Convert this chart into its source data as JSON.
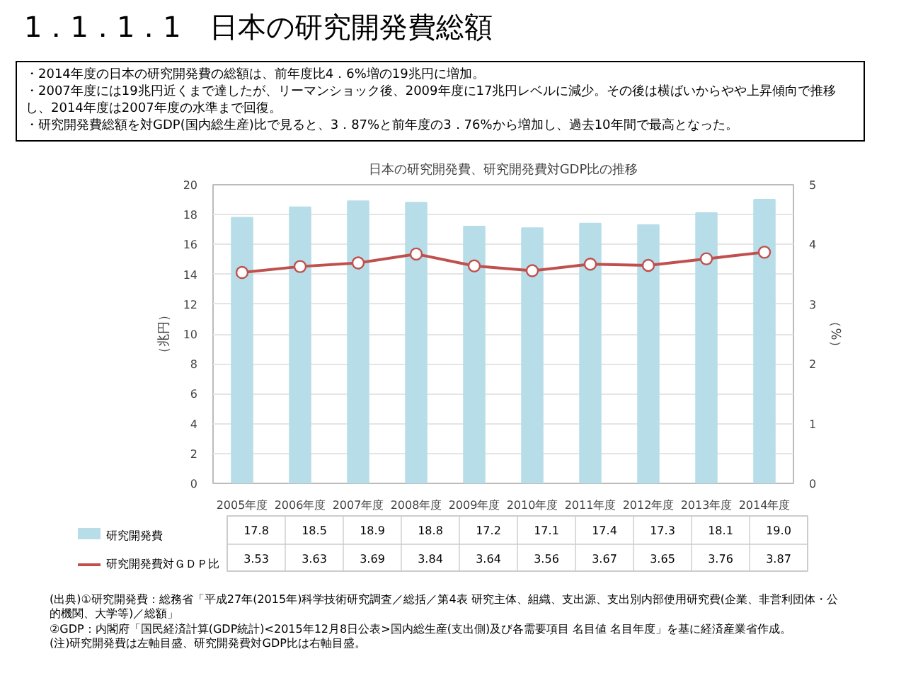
{
  "chart_data": {
    "type": "bar",
    "title": "1．1．1．1　日本の研究開発費総額",
    "subtitle": "日本の研究開発費、研究開発費対GDP比の推移",
    "ylabel": "（兆円）",
    "y2label": "（%）",
    "categories": [
      "2005年度",
      "2006年度",
      "2007年度",
      "2008年度",
      "2009年度",
      "2010年度",
      "2011年度",
      "2012年度",
      "2013年度",
      "2014年度"
    ],
    "series": [
      {
        "name": "研究開発費",
        "color": "#b7dde8",
        "values": [
          17.8,
          18.5,
          18.9,
          18.8,
          17.2,
          17.1,
          17.4,
          17.3,
          18.1,
          19.0
        ],
        "value_labels": [
          "17.8",
          "18.5",
          "18.9",
          "18.8",
          "17.2",
          "17.1",
          "17.4",
          "17.3",
          "18.1",
          "19.0"
        ]
      },
      {
        "name": "研究開発費対ＧＤＰ比",
        "type": "line",
        "axis": "y2",
        "color": "#c0504d",
        "marker": "circle",
        "values": [
          3.53,
          3.63,
          3.69,
          3.84,
          3.64,
          3.56,
          3.67,
          3.65,
          3.76,
          3.87
        ],
        "value_labels": [
          "3.53",
          "3.63",
          "3.69",
          "3.84",
          "3.64",
          "3.56",
          "3.67",
          "3.65",
          "3.76",
          "3.87"
        ]
      }
    ],
    "ylim": [
      0,
      20
    ],
    "yticks": [
      0,
      2,
      4,
      6,
      8,
      10,
      12,
      14,
      16,
      18,
      20
    ],
    "y2lim": [
      0,
      5
    ],
    "y2ticks": [
      0,
      1,
      2,
      3,
      4,
      5
    ],
    "grid": "y",
    "legend": "bottom",
    "annotations": [
      "・2014年度の日本の研究開発費の総額は、前年度比4．6%増の19兆円に増加。",
      "・2007年度には19兆円近くまで達したが、リーマンショック後、2009年度に17兆円レベルに減少。その後は横ばいからやや上昇傾向で推移し、2014年度は2007年度の水準まで回復。",
      "・研究開発費総額を対GDP(国内総生産)比で見ると、3．87%と前年度の3．76%から増加し、過去10年間で最高となった。",
      "(出典)①研究開発費：総務省「平成27年(2015年)科学技術研究調査／総括／第4表 研究主体、組織、支出源、支出別内部使用研究費(企業、非営利団体・公的機関、大学等)／総額」",
      "②GDP：内閣府「国民経済計算(GDP統計)<2015年12月8日公表>国内総生産(支出側)及び各需要項目 名目値 名目年度」を基に経済産業省作成。",
      "(注)研究開発費は左軸目盛、研究開発費対GDP比は右軸目盛。"
    ]
  }
}
